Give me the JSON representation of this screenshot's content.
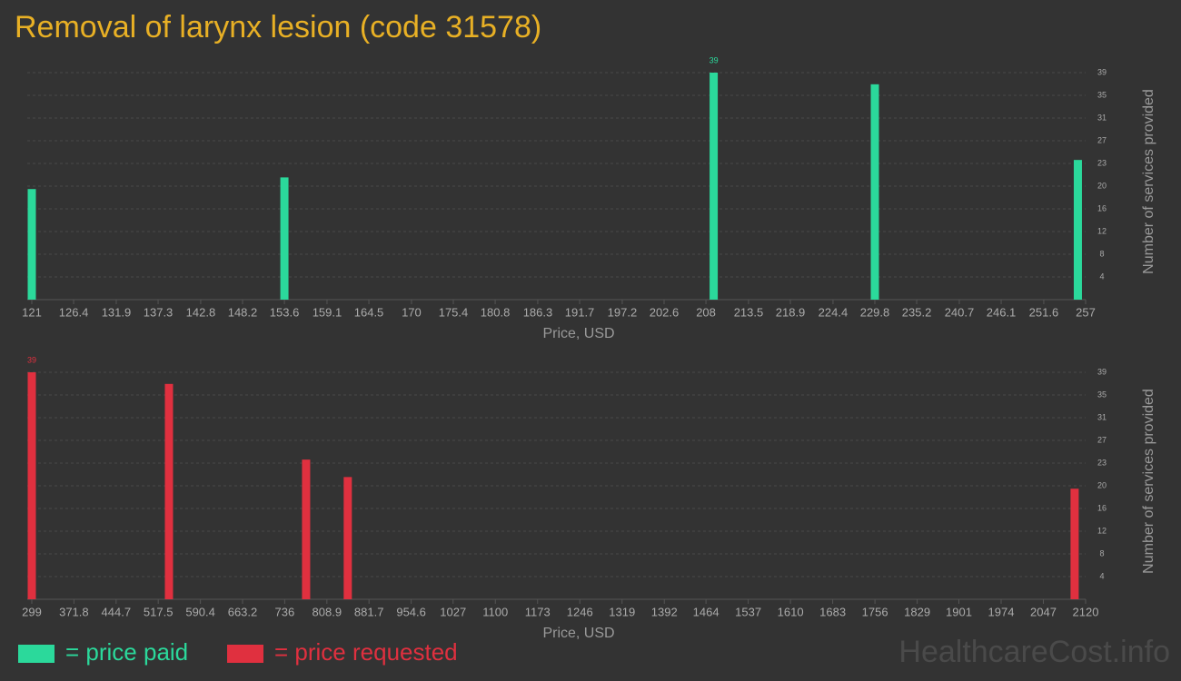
{
  "title": "Removal of larynx lesion (code 31578)",
  "watermark": "HealthcareCost.info",
  "chart_data": [
    {
      "type": "bar",
      "xlabel": "Price, USD",
      "ylabel": "Number of services provided",
      "grid": true,
      "x": [
        121,
        153.6,
        209,
        229.8,
        256
      ],
      "series": [
        {
          "name": "= price paid",
          "color": "#2bd99b",
          "values": [
            19,
            21,
            39,
            37,
            24
          ]
        }
      ],
      "xlim": [
        121,
        257
      ],
      "xticks": [
        121,
        126.4,
        131.9,
        137.3,
        142.8,
        148.2,
        153.6,
        159.1,
        164.5,
        170,
        175.4,
        180.8,
        186.3,
        191.7,
        197.2,
        202.6,
        208,
        213.5,
        218.9,
        224.4,
        229.8,
        235.2,
        240.7,
        246.1,
        251.6,
        257
      ],
      "ylim": [
        0,
        39
      ],
      "yticks": [
        {
          "value": 3.9,
          "label": "4"
        },
        {
          "value": 7.8,
          "label": "8"
        },
        {
          "value": 11.7,
          "label": "12"
        },
        {
          "value": 15.6,
          "label": "16"
        },
        {
          "value": 19.5,
          "label": "20"
        },
        {
          "value": 23.4,
          "label": "23"
        },
        {
          "value": 27.3,
          "label": "27"
        },
        {
          "value": 31.2,
          "label": "31"
        },
        {
          "value": 35.1,
          "label": "35"
        },
        39
      ]
    },
    {
      "type": "bar",
      "xlabel": "Price, USD",
      "ylabel": "Number of services provided",
      "grid": true,
      "x": [
        299,
        536,
        773,
        845,
        2101
      ],
      "series": [
        {
          "name": "= price requested",
          "color": "#e0303f",
          "values": [
            39,
            37,
            24,
            21,
            19
          ]
        }
      ],
      "xlim": [
        299,
        2120
      ],
      "xticks": [
        299,
        371.8,
        444.7,
        517.5,
        590.4,
        663.2,
        736,
        808.9,
        881.7,
        954.6,
        1027,
        1100,
        1173,
        1246,
        1319,
        1392,
        1464,
        1537,
        1610,
        1683,
        1756,
        1829,
        1901,
        1974,
        2047,
        2120
      ],
      "ylim": [
        0,
        39
      ],
      "yticks": [
        {
          "value": 3.9,
          "label": "4"
        },
        {
          "value": 7.8,
          "label": "8"
        },
        {
          "value": 11.7,
          "label": "12"
        },
        {
          "value": 15.6,
          "label": "16"
        },
        {
          "value": 19.5,
          "label": "20"
        },
        {
          "value": 23.4,
          "label": "23"
        },
        {
          "value": 27.3,
          "label": "27"
        },
        {
          "value": 31.2,
          "label": "31"
        },
        {
          "value": 35.1,
          "label": "35"
        },
        39
      ]
    }
  ]
}
